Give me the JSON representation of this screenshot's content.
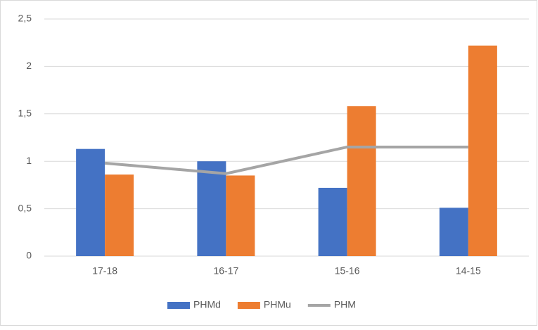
{
  "chart_data": {
    "type": "bar",
    "categories": [
      "17-18",
      "16-17",
      "15-16",
      "14-15"
    ],
    "series": [
      {
        "name": "PHMd",
        "type": "bar",
        "color": "#4472c4",
        "values": [
          1.13,
          1.0,
          0.72,
          0.51
        ]
      },
      {
        "name": "PHMu",
        "type": "bar",
        "color": "#ed7d31",
        "values": [
          0.86,
          0.85,
          1.58,
          2.22
        ]
      },
      {
        "name": "PHM",
        "type": "line",
        "color": "#a5a5a5",
        "values": [
          0.98,
          0.87,
          1.15,
          1.15
        ]
      }
    ],
    "ylim": [
      0,
      2.5
    ],
    "yticks": [
      0,
      {
        "value": 0.5,
        "label": "0,5"
      },
      1,
      {
        "value": 1.5,
        "label": "1,5"
      },
      2,
      {
        "value": 2.5,
        "label": "2,5"
      }
    ],
    "grid": true,
    "legend": "bottom"
  }
}
